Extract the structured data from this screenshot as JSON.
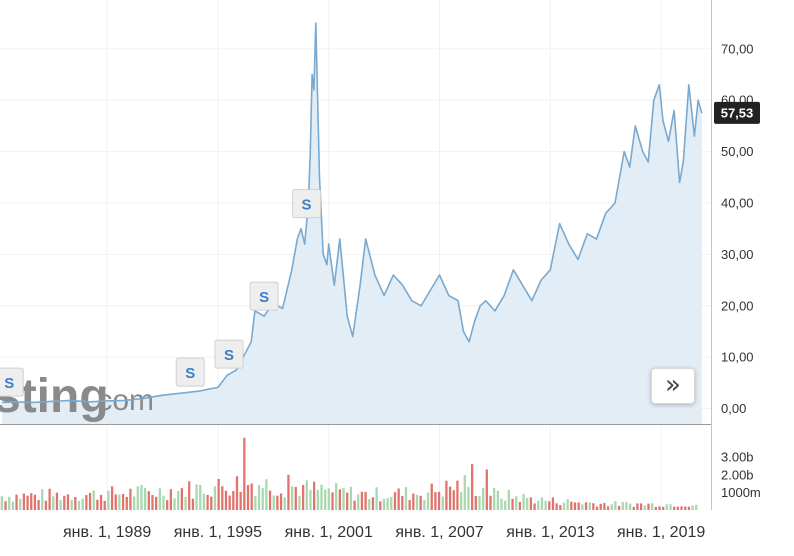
{
  "chart_data": {
    "type": "area",
    "xlim": [
      1983.2,
      2021.7
    ],
    "ylim": [
      -3,
      76
    ],
    "grid": true,
    "y_ticks": [
      {
        "value": 0,
        "label": "0,00"
      },
      {
        "value": 10,
        "label": "10,00"
      },
      {
        "value": 20,
        "label": "20,00"
      },
      {
        "value": 30,
        "label": "30,00"
      },
      {
        "value": 40,
        "label": "40,00"
      },
      {
        "value": 50,
        "label": "50,00"
      },
      {
        "value": 60,
        "label": "60,00"
      },
      {
        "value": 70,
        "label": "70,00"
      }
    ],
    "x_ticks": [
      {
        "value": 1989,
        "label": "янв. 1, 1989"
      },
      {
        "value": 1995,
        "label": "янв. 1, 1995"
      },
      {
        "value": 2001,
        "label": "янв. 1, 2001"
      },
      {
        "value": 2007,
        "label": "янв. 1, 2007"
      },
      {
        "value": 2013,
        "label": "янв. 1, 2013"
      },
      {
        "value": 2019,
        "label": "янв. 1, 2019"
      }
    ],
    "last_price_label": "57,53",
    "last_price": 57.53,
    "price_series": {
      "x": [
        1983.3,
        1984,
        1985,
        1986,
        1987,
        1988,
        1989,
        1990,
        1991,
        1992,
        1993,
        1994,
        1994.5,
        1995,
        1995.5,
        1996,
        1996.3,
        1996.8,
        1997,
        1997.5,
        1998,
        1998.5,
        1999,
        1999.3,
        1999.5,
        1999.7,
        1999.9,
        2000,
        2000.1,
        2000.2,
        2000.3,
        2000.5,
        2000.7,
        2000.9,
        2001,
        2001.3,
        2001.6,
        2002,
        2002.3,
        2002.7,
        2003,
        2003.5,
        2004,
        2004.5,
        2005,
        2005.5,
        2006,
        2006.5,
        2007,
        2007.5,
        2008,
        2008.3,
        2008.6,
        2008.9,
        2009.2,
        2009.5,
        2010,
        2010.5,
        2011,
        2011.5,
        2012,
        2012.5,
        2013,
        2013.5,
        2014,
        2014.5,
        2015,
        2015.5,
        2016,
        2016.5,
        2017,
        2017.3,
        2017.6,
        2018,
        2018.3,
        2018.6,
        2018.9,
        2019.1,
        2019.4,
        2019.7,
        2020,
        2020.2,
        2020.5,
        2020.8,
        2021,
        2021.2
      ],
      "y": [
        1.2,
        1.3,
        1.2,
        1.4,
        1.6,
        1.3,
        1.5,
        1.6,
        2.0,
        2.6,
        3.0,
        3.4,
        3.8,
        4.1,
        6.5,
        7.5,
        9.5,
        13.0,
        19.0,
        18.0,
        20.5,
        19.5,
        27.0,
        33.0,
        35.0,
        32.0,
        40.0,
        50.0,
        65.0,
        62.0,
        75.0,
        45.0,
        30.0,
        28.0,
        32.0,
        24.0,
        33.0,
        18.0,
        14.0,
        24.0,
        33.0,
        26.0,
        22.0,
        26.0,
        24.0,
        21.0,
        20.0,
        23.0,
        26.0,
        22.0,
        21.0,
        15.0,
        13.0,
        17.0,
        20.0,
        21.0,
        19.0,
        22.0,
        27.0,
        24.0,
        21.0,
        25.0,
        27.0,
        36.0,
        32.0,
        29.0,
        34.0,
        33.0,
        38.0,
        40.0,
        50.0,
        47.0,
        55.0,
        50.0,
        48.0,
        60.0,
        63.0,
        56.0,
        52.0,
        58.0,
        44.0,
        48.0,
        63.0,
        53.0,
        60.0,
        57.5
      ]
    },
    "split_markers": [
      {
        "x": 1983.7,
        "label": "S"
      },
      {
        "x": 1993.5,
        "label": "S"
      },
      {
        "x": 1995.6,
        "label": "S"
      },
      {
        "x": 1997.5,
        "label": "S"
      },
      {
        "x": 1999.8,
        "label": "S"
      }
    ],
    "volume": {
      "unit_labels": [
        {
          "value": 3.0,
          "label": "3.00b"
        },
        {
          "value": 2.0,
          "label": "2.00b"
        },
        {
          "value": 1.0,
          "label": "1000m"
        }
      ],
      "max": 4.2,
      "start": 1983.3,
      "end": 2021.1,
      "bars": 190,
      "envelope": [
        [
          1983.3,
          0.9
        ],
        [
          1988,
          1.0
        ],
        [
          1992,
          1.2
        ],
        [
          1995,
          1.5
        ],
        [
          1996.5,
          1.8
        ],
        [
          1998,
          1.6
        ],
        [
          2000.5,
          1.3
        ],
        [
          2003,
          1.0
        ],
        [
          2006,
          1.1
        ],
        [
          2008.6,
          1.7
        ],
        [
          2010,
          1.0
        ],
        [
          2013,
          0.6
        ],
        [
          2016,
          0.4
        ],
        [
          2021.1,
          0.35
        ]
      ],
      "peaks": [
        [
          1996.5,
          4.1
        ],
        [
          2008.8,
          2.6
        ],
        [
          2009.5,
          2.3
        ],
        [
          1998.8,
          2.0
        ]
      ],
      "colors": {
        "up": "#a8d8b0",
        "down": "#e0736b"
      }
    },
    "colors": {
      "line": "#7aa9d0",
      "area": "#e3edf6",
      "grid": "#eef1f4",
      "axis": "#c4c4c4",
      "price_tag": "#222222"
    }
  },
  "watermark": {
    "bold": "sting",
    "light": ".com"
  },
  "expand_button": {
    "icon": "double-chevron-right-icon",
    "glyph": "»"
  }
}
